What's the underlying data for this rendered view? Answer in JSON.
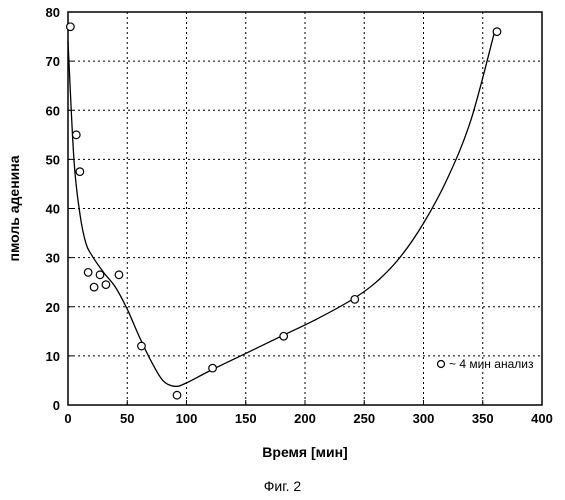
{
  "chart_data": {
    "type": "scatter",
    "xlabel": "Время [мин]",
    "ylabel": "пмоль аденина",
    "xlim": [
      0,
      400
    ],
    "ylim": [
      0,
      80
    ],
    "xticks": [
      "0",
      "50",
      "100",
      "150",
      "200",
      "250",
      "300",
      "350",
      "400"
    ],
    "yticks": [
      "0",
      "10",
      "20",
      "30",
      "40",
      "50",
      "60",
      "70",
      "80"
    ],
    "grid": true,
    "legend_position": "bottom-right",
    "series": [
      {
        "name": "~ 4 мин анализ",
        "kind": "points",
        "x": [
          2,
          7,
          10,
          17,
          22,
          27,
          32,
          43,
          62,
          92,
          122,
          182,
          242,
          362
        ],
        "y": [
          77,
          55,
          47.5,
          27,
          24,
          26.5,
          24.5,
          26.5,
          12,
          2,
          7.5,
          14,
          21.5,
          76
        ]
      },
      {
        "kind": "fit-curve",
        "x": [
          0,
          5,
          10,
          15,
          20,
          30,
          40,
          50,
          60,
          70,
          80,
          90,
          100,
          120,
          150,
          180,
          210,
          240,
          260,
          280,
          300,
          320,
          340,
          360
        ],
        "y": [
          74,
          50,
          39,
          33,
          30.5,
          27,
          24,
          19.5,
          14,
          9,
          5,
          3.8,
          4.5,
          7,
          10.5,
          14,
          17.5,
          21.5,
          25,
          30,
          37,
          46,
          58,
          76
        ]
      }
    ],
    "caption": "Фиг. 2"
  }
}
